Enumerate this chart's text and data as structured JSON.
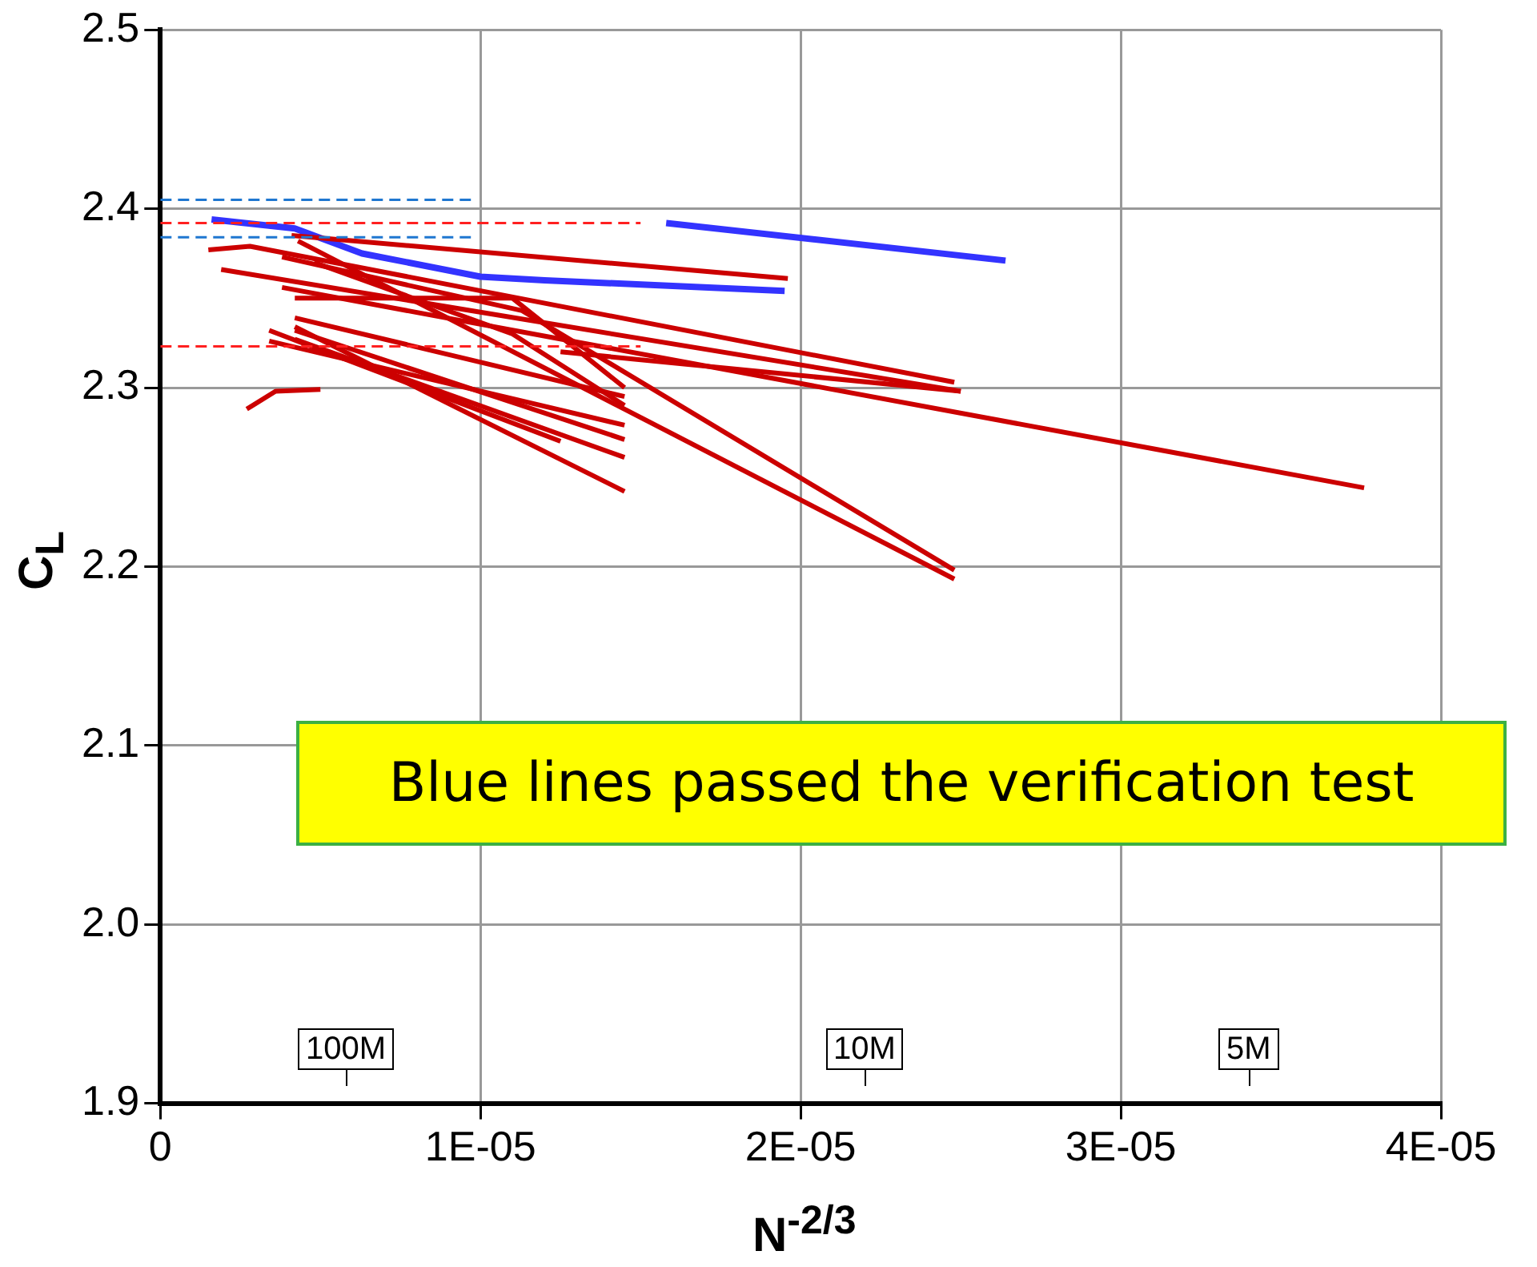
{
  "chart_data": {
    "type": "line",
    "xlabel": "N$^{-2/3}$",
    "ylabel": "C$_{L}$",
    "xlim": [
      0,
      4e-05
    ],
    "ylim": [
      1.9,
      2.5
    ],
    "xticks": [
      0,
      {
        "value": 1e-05,
        "label": "1E-05"
      },
      {
        "value": 2e-05,
        "label": "2E-05"
      },
      {
        "value": 3e-05,
        "label": "3E-05"
      },
      {
        "value": 4e-05,
        "label": "4E-05"
      }
    ],
    "yticks": [
      1.9,
      {
        "value": 2.0,
        "label": "2.0"
      },
      2.1,
      2.2,
      2.3,
      2.4,
      2.5
    ],
    "grid": true,
    "series": [
      {
        "color": "#1f77d0",
        "line_style": "dashed",
        "x": [
          0,
          9.7e-06
        ],
        "values": [
          2.405,
          2.405
        ]
      },
      {
        "color": "#1f77d0",
        "line_style": "dashed",
        "x": [
          0,
          9.7e-06
        ],
        "values": [
          2.384,
          2.384
        ]
      },
      {
        "color": "#ff2020",
        "line_style": "dashed",
        "x": [
          0,
          1.5e-05
        ],
        "values": [
          2.392,
          2.392
        ]
      },
      {
        "color": "#ff2020",
        "line_style": "dashed",
        "x": [
          0,
          1.5e-05
        ],
        "values": [
          2.323,
          2.323
        ]
      },
      {
        "color": "#cc0000",
        "x": [
          4.1e-06,
          1.96e-05
        ],
        "values": [
          2.385,
          2.361
        ]
      },
      {
        "color": "#cc0000",
        "x": [
          1.5e-06,
          2.8e-06,
          2.48e-05
        ],
        "values": [
          2.377,
          2.379,
          2.303
        ]
      },
      {
        "color": "#cc0000",
        "x": [
          1.9e-06,
          2.5e-05
        ],
        "values": [
          2.366,
          2.298
        ]
      },
      {
        "color": "#cc0000",
        "x": [
          3.8e-06,
          3.76e-05
        ],
        "values": [
          2.356,
          2.244
        ]
      },
      {
        "color": "#cc0000",
        "x": [
          3.8e-06,
          1.13e-05,
          2.48e-05
        ],
        "values": [
          2.373,
          2.343,
          2.198
        ]
      },
      {
        "color": "#cc0000",
        "x": [
          4.3e-06,
          2.48e-05
        ],
        "values": [
          2.382,
          2.193
        ]
      },
      {
        "color": "#cc0000",
        "x": [
          4.2e-06,
          1.45e-05
        ],
        "values": [
          2.339,
          2.295
        ]
      },
      {
        "color": "#cc0000",
        "x": [
          3.4e-06,
          1.45e-05
        ],
        "values": [
          2.326,
          2.279
        ]
      },
      {
        "color": "#cc0000",
        "x": [
          4.2e-06,
          1.45e-05
        ],
        "values": [
          2.332,
          2.271
        ]
      },
      {
        "color": "#cc0000",
        "x": [
          4.2e-06,
          1.45e-05
        ],
        "values": [
          2.327,
          2.261
        ]
      },
      {
        "color": "#cc0000",
        "x": [
          4.2e-06,
          1.45e-05
        ],
        "values": [
          2.334,
          2.242
        ]
      },
      {
        "color": "#cc0000",
        "x": [
          3.4e-06,
          1.25e-05
        ],
        "values": [
          2.332,
          2.27
        ]
      },
      {
        "color": "#cc0000",
        "x": [
          4.2e-06,
          1.1e-05,
          1.45e-05
        ],
        "values": [
          2.35,
          2.35,
          2.3
        ]
      },
      {
        "color": "#cc0000",
        "x": [
          4.8e-06,
          1.1e-05,
          1.45e-05
        ],
        "values": [
          2.37,
          2.33,
          2.29
        ]
      },
      {
        "color": "#cc0000",
        "x": [
          1.25e-05,
          2.5e-05
        ],
        "values": [
          2.32,
          2.298
        ]
      },
      {
        "color": "#cc0000",
        "x": [
          2.7e-06,
          3.6e-06,
          5e-06
        ],
        "values": [
          2.288,
          2.298,
          2.299
        ]
      },
      {
        "color": "#3333ff",
        "x": [
          1.6e-06,
          4.2e-06,
          6.3e-06,
          1e-05,
          1.2e-05,
          1.95e-05
        ],
        "values": [
          2.394,
          2.389,
          2.375,
          2.362,
          2.36,
          2.354
        ]
      },
      {
        "color": "#3333ff",
        "x": [
          1.58e-05,
          2.64e-05
        ],
        "values": [
          2.392,
          2.371
        ]
      }
    ],
    "annotations": [
      "100M",
      "10M",
      "5M",
      "Blue lines passed the verification test"
    ]
  }
}
